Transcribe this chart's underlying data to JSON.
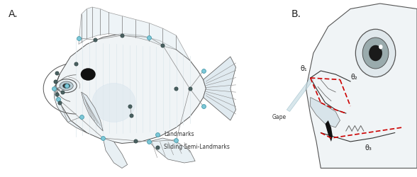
{
  "fig_width": 5.88,
  "fig_height": 2.5,
  "dpi": 100,
  "bg_color": "#ffffff",
  "panel_A_label": "A.",
  "panel_B_label": "B.",
  "fish_body_color": "#f0f4f6",
  "fish_body_edge_color": "#555555",
  "fish_stripe_color": "#dde8ec",
  "landmark_color": "#7dc8d8",
  "landmark_edge_color": "#4a9aaa",
  "sliding_color": "#4a6060",
  "sliding_edge_color": "#2a4040",
  "legend_landmark_label": "Landmarks",
  "legend_sliding_label": "Sliding Semi-Landmarks",
  "angle_line_color": "#cc0000",
  "gape_label": "Gape",
  "theta1_label": "θ₁",
  "theta2_label": "θ₂",
  "theta3_label": "θ₃"
}
